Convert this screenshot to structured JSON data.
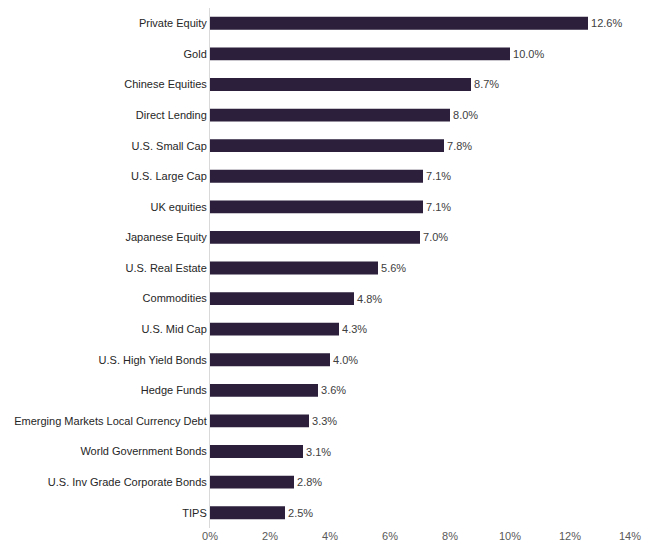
{
  "chart_data": {
    "type": "bar",
    "orientation": "horizontal",
    "categories": [
      "Private Equity",
      "Gold",
      "Chinese Equities",
      "Direct Lending",
      "U.S. Small Cap",
      "U.S. Large Cap",
      "UK equities",
      "Japanese Equity",
      "U.S. Real Estate",
      "Commodities",
      "U.S. Mid Cap",
      "U.S. High Yield Bonds",
      "Hedge Funds",
      "Emerging Markets Local Currency Debt",
      "World Government Bonds",
      "U.S. Inv Grade Corporate Bonds",
      "TIPS"
    ],
    "values": [
      12.6,
      10.0,
      8.7,
      8.0,
      7.8,
      7.1,
      7.1,
      7.0,
      5.6,
      4.8,
      4.3,
      4.0,
      3.6,
      3.3,
      3.1,
      2.8,
      2.5
    ],
    "value_labels": [
      "12.6%",
      "10.0%",
      "8.7%",
      "8.0%",
      "7.8%",
      "7.1%",
      "7.1%",
      "7.0%",
      "5.6%",
      "4.8%",
      "4.3%",
      "4.0%",
      "3.6%",
      "3.3%",
      "3.1%",
      "2.8%",
      "2.5%"
    ],
    "data_labels": true,
    "color": "#2b1f3b",
    "xlim": [
      0,
      14
    ],
    "xticks": [
      {
        "value": 0,
        "label": "0%"
      },
      {
        "value": 2,
        "label": "2%"
      },
      {
        "value": 4,
        "label": "4%"
      },
      {
        "value": 6,
        "label": "6%"
      },
      {
        "value": 8,
        "label": "8%"
      },
      {
        "value": 10,
        "label": "10%"
      },
      {
        "value": 12,
        "label": "12%"
      },
      {
        "value": 14,
        "label": "14%"
      }
    ],
    "grid": false
  }
}
